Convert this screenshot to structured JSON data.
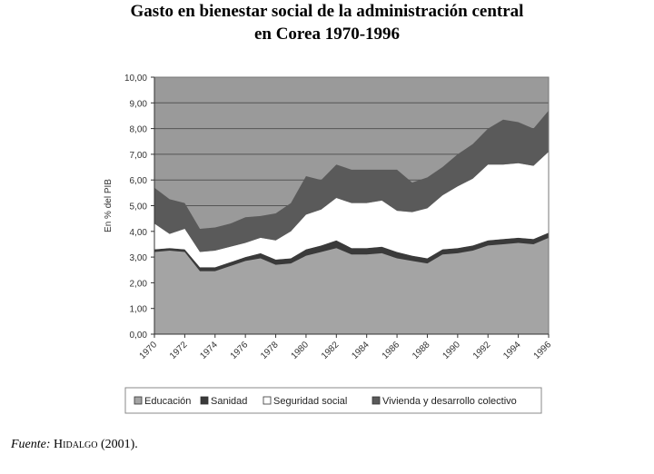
{
  "title_line1": "Gasto en bienestar social de la administración central",
  "title_line2": "en Corea 1970-1996",
  "source": {
    "label": "Fuente:",
    "author": "Hidalgo",
    "year": "(2001)."
  },
  "chart_data": {
    "type": "area",
    "stacked": true,
    "ylabel": "En % del PIB",
    "xlabel": "",
    "ylim": [
      0,
      10
    ],
    "yticks": [
      "0,00",
      "1,00",
      "2,00",
      "3,00",
      "4,00",
      "5,00",
      "6,00",
      "7,00",
      "8,00",
      "9,00",
      "10,00"
    ],
    "xticks": [
      "1970",
      "1972",
      "1974",
      "1976",
      "1978",
      "1980",
      "1982",
      "1984",
      "1986",
      "1988",
      "1990",
      "1992",
      "1994",
      "1996"
    ],
    "grid": true,
    "legend_position": "bottom",
    "x": [
      1970,
      1971,
      1972,
      1973,
      1974,
      1975,
      1976,
      1977,
      1978,
      1979,
      1980,
      1981,
      1982,
      1983,
      1984,
      1985,
      1986,
      1987,
      1988,
      1989,
      1990,
      1991,
      1992,
      1993,
      1994,
      1995,
      1996
    ],
    "series": [
      {
        "name": "Educación",
        "color": "#a4a4a4",
        "values": [
          3.2,
          3.25,
          3.2,
          2.45,
          2.45,
          2.65,
          2.85,
          2.95,
          2.7,
          2.75,
          3.05,
          3.2,
          3.35,
          3.1,
          3.1,
          3.15,
          2.95,
          2.85,
          2.75,
          3.1,
          3.15,
          3.25,
          3.45,
          3.5,
          3.55,
          3.5,
          3.75
        ]
      },
      {
        "name": "Sanidad",
        "color": "#3a3a3a",
        "values": [
          0.1,
          0.1,
          0.1,
          0.15,
          0.15,
          0.15,
          0.15,
          0.2,
          0.2,
          0.2,
          0.25,
          0.25,
          0.3,
          0.25,
          0.25,
          0.25,
          0.25,
          0.2,
          0.2,
          0.2,
          0.2,
          0.2,
          0.2,
          0.2,
          0.2,
          0.2,
          0.2
        ]
      },
      {
        "name": "Seguridad social",
        "color": "#ffffff",
        "values": [
          1.0,
          0.55,
          0.8,
          0.6,
          0.65,
          0.6,
          0.55,
          0.6,
          0.75,
          1.05,
          1.35,
          1.4,
          1.65,
          1.75,
          1.75,
          1.8,
          1.6,
          1.7,
          1.95,
          2.1,
          2.4,
          2.6,
          2.95,
          2.9,
          2.9,
          2.85,
          3.15
        ]
      },
      {
        "name": "Vivienda y desarrollo colectivo",
        "color": "#5a5a5a",
        "values": [
          1.4,
          1.35,
          1.0,
          0.9,
          0.9,
          0.9,
          1.0,
          0.85,
          1.05,
          1.1,
          1.5,
          1.15,
          1.3,
          1.3,
          1.3,
          1.2,
          1.6,
          1.15,
          1.2,
          1.1,
          1.25,
          1.35,
          1.4,
          1.75,
          1.6,
          1.45,
          1.6
        ]
      }
    ]
  }
}
